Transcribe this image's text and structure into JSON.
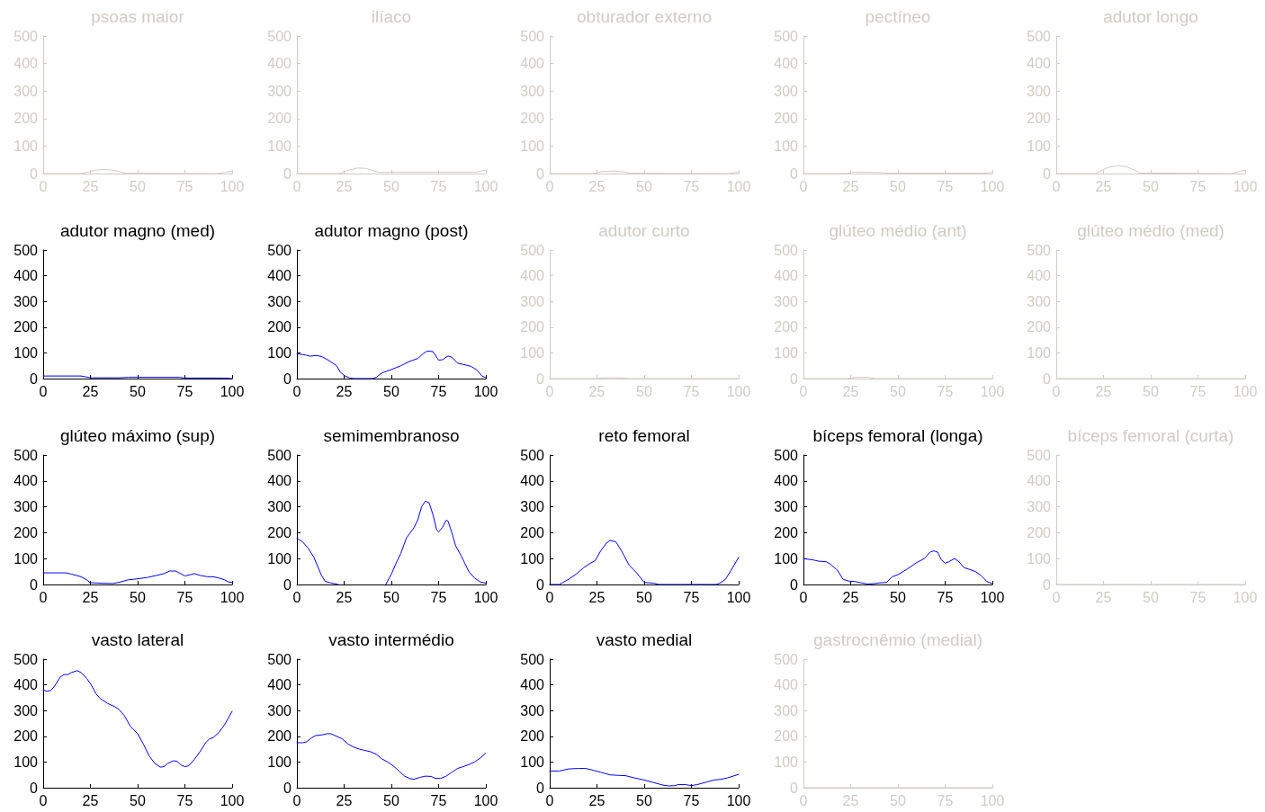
{
  "chart_data": [
    {
      "type": "line",
      "title": "psoas maior",
      "x": [
        0,
        20,
        24,
        28,
        32,
        36,
        40,
        44,
        92,
        96,
        100
      ],
      "series": [
        {
          "color": "#d0cbc4",
          "values": [
            0,
            0,
            6,
            13,
            15,
            13,
            7,
            1,
            0,
            4,
            10
          ]
        }
      ],
      "xlim": [
        0,
        100
      ],
      "xticks": [
        0,
        25,
        50,
        75,
        100
      ],
      "ylim": [
        0,
        500
      ],
      "yticks": [
        0,
        100,
        200,
        300,
        400,
        500
      ]
    },
    {
      "type": "line",
      "title": "ilíaco",
      "x": [
        0,
        23,
        27,
        32,
        36,
        40,
        43,
        95,
        100
      ],
      "series": [
        {
          "color": "#d0cbc4",
          "values": [
            0,
            0,
            12,
            20,
            19,
            12,
            5,
            5,
            13
          ]
        }
      ],
      "xlim": [
        0,
        100
      ],
      "xticks": [
        0,
        25,
        50,
        75,
        100
      ],
      "ylim": [
        0,
        500
      ],
      "yticks": [
        0,
        100,
        200,
        300,
        400,
        500
      ]
    },
    {
      "type": "line",
      "title": "obturador externo",
      "x": [
        0,
        23,
        28,
        35,
        40,
        43,
        95,
        100
      ],
      "series": [
        {
          "color": "#d0cbc4",
          "values": [
            0,
            0,
            8,
            9,
            5,
            1,
            0,
            6
          ]
        }
      ],
      "xlim": [
        0,
        100
      ],
      "xticks": [
        0,
        25,
        50,
        75,
        100
      ],
      "ylim": [
        0,
        500
      ],
      "yticks": [
        0,
        100,
        200,
        300,
        400,
        500
      ]
    },
    {
      "type": "line",
      "title": "pectíneo",
      "x": [
        0,
        23,
        26,
        40,
        45,
        95,
        100
      ],
      "series": [
        {
          "color": "#d0cbc4",
          "values": [
            0,
            0,
            5,
            4,
            1,
            1,
            4
          ]
        }
      ],
      "xlim": [
        0,
        100
      ],
      "xticks": [
        0,
        25,
        50,
        75,
        100
      ],
      "ylim": [
        0,
        500
      ],
      "yticks": [
        0,
        100,
        200,
        300,
        400,
        500
      ]
    },
    {
      "type": "line",
      "title": "adutor longo",
      "x": [
        0,
        21,
        25,
        29,
        33,
        37,
        41,
        44,
        93,
        97,
        100
      ],
      "series": [
        {
          "color": "#d0cbc4",
          "values": [
            0,
            0,
            15,
            25,
            28,
            25,
            14,
            2,
            0,
            8,
            12
          ]
        }
      ],
      "xlim": [
        0,
        100
      ],
      "xticks": [
        0,
        25,
        50,
        75,
        100
      ],
      "ylim": [
        0,
        500
      ],
      "yticks": [
        0,
        100,
        200,
        300,
        400,
        500
      ]
    },
    {
      "type": "line",
      "title": "adutor magno (med)",
      "x": [
        0,
        20,
        25,
        40,
        45,
        72,
        75,
        95,
        100
      ],
      "series": [
        {
          "color": "#0000ff",
          "values": [
            10,
            10,
            3,
            3,
            5,
            5,
            2,
            2,
            0
          ]
        }
      ],
      "xlim": [
        0,
        100
      ],
      "xticks": [
        0,
        25,
        50,
        75,
        100
      ],
      "ylim": [
        0,
        500
      ],
      "yticks": [
        0,
        100,
        200,
        300,
        400,
        500
      ]
    },
    {
      "type": "line",
      "title": "adutor magno (post)",
      "x": [
        0,
        5,
        7,
        10,
        13,
        17,
        21,
        23,
        25,
        28,
        30,
        40,
        42,
        45,
        50,
        55,
        60,
        64,
        67,
        69,
        72,
        75,
        77,
        80,
        82,
        85,
        88,
        92,
        95,
        98,
        100
      ],
      "series": [
        {
          "color": "#0000ff",
          "values": [
            97,
            91,
            87,
            90,
            86,
            70,
            50,
            25,
            12,
            2,
            0,
            0,
            5,
            22,
            35,
            50,
            68,
            78,
            98,
            107,
            105,
            72,
            73,
            88,
            83,
            60,
            55,
            48,
            35,
            10,
            3
          ]
        }
      ],
      "xlim": [
        0,
        100
      ],
      "xticks": [
        0,
        25,
        50,
        75,
        100
      ],
      "ylim": [
        0,
        500
      ],
      "yticks": [
        0,
        100,
        200,
        300,
        400,
        500
      ]
    },
    {
      "type": "line",
      "title": "adutor curto",
      "x": [
        0,
        24,
        30,
        36,
        42,
        100
      ],
      "series": [
        {
          "color": "#d0cbc4",
          "values": [
            0,
            0,
            3,
            3,
            0,
            0
          ]
        }
      ],
      "xlim": [
        0,
        100
      ],
      "xticks": [
        0,
        25,
        50,
        75,
        100
      ],
      "ylim": [
        0,
        500
      ],
      "yticks": [
        0,
        100,
        200,
        300,
        400,
        500
      ]
    },
    {
      "type": "line",
      "title": "glúteo médio (ant)",
      "x": [
        0,
        23,
        28,
        34,
        38,
        100
      ],
      "series": [
        {
          "color": "#d0cbc4",
          "values": [
            0,
            0,
            5,
            5,
            0,
            0
          ]
        }
      ],
      "xlim": [
        0,
        100
      ],
      "xticks": [
        0,
        25,
        50,
        75,
        100
      ],
      "ylim": [
        0,
        500
      ],
      "yticks": [
        0,
        100,
        200,
        300,
        400,
        500
      ]
    },
    {
      "type": "line",
      "title": "glúteo médio (med)",
      "x": [
        0,
        100
      ],
      "series": [
        {
          "color": "#d0cbc4",
          "values": [
            0,
            0
          ]
        }
      ],
      "xlim": [
        0,
        100
      ],
      "xticks": [
        0,
        25,
        50,
        75,
        100
      ],
      "ylim": [
        0,
        500
      ],
      "yticks": [
        0,
        100,
        200,
        300,
        400,
        500
      ]
    },
    {
      "type": "line",
      "title": "glúteo máximo (sup)",
      "x": [
        0,
        12,
        15,
        20,
        23,
        25,
        30,
        37,
        40,
        45,
        50,
        55,
        60,
        64,
        67,
        70,
        72,
        75,
        78,
        80,
        83,
        87,
        90,
        93,
        96,
        98,
        100
      ],
      "series": [
        {
          "color": "#0000ff",
          "values": [
            45,
            45,
            40,
            30,
            18,
            7,
            5,
            4,
            8,
            18,
            22,
            27,
            35,
            42,
            52,
            52,
            45,
            33,
            38,
            42,
            35,
            30,
            30,
            25,
            18,
            10,
            8
          ]
        }
      ],
      "xlim": [
        0,
        100
      ],
      "xticks": [
        0,
        25,
        50,
        75,
        100
      ],
      "ylim": [
        0,
        500
      ],
      "yticks": [
        0,
        100,
        200,
        300,
        400,
        500
      ]
    },
    {
      "type": "line",
      "title": "semimembranoso",
      "x": [
        0,
        3,
        6,
        9,
        11,
        13,
        15,
        18,
        20,
        22,
        35,
        47,
        50,
        53,
        55,
        58,
        62,
        64,
        66,
        68,
        70,
        72,
        74,
        75,
        77,
        79,
        80,
        82,
        84,
        87,
        89,
        91,
        94,
        97,
        100
      ],
      "series": [
        {
          "color": "#0000ff",
          "values": [
            178,
            165,
            140,
            105,
            70,
            35,
            12,
            6,
            3,
            0,
            null,
            0,
            40,
            90,
            120,
            180,
            220,
            250,
            300,
            322,
            315,
            270,
            210,
            203,
            220,
            248,
            245,
            200,
            150,
            110,
            80,
            50,
            25,
            10,
            5
          ]
        }
      ],
      "xlim": [
        0,
        100
      ],
      "xticks": [
        0,
        25,
        50,
        75,
        100
      ],
      "ylim": [
        0,
        500
      ],
      "yticks": [
        0,
        100,
        200,
        300,
        400,
        500
      ]
    },
    {
      "type": "line",
      "title": "reto femoral",
      "x": [
        0,
        5,
        7,
        10,
        14,
        18,
        21,
        24,
        27,
        30,
        32,
        35,
        38,
        42,
        46,
        50,
        55,
        58,
        88,
        90,
        93,
        96,
        100
      ],
      "series": [
        {
          "color": "#0000ff",
          "values": [
            0,
            0,
            8,
            20,
            40,
            65,
            80,
            92,
            130,
            160,
            170,
            165,
            130,
            75,
            45,
            8,
            5,
            0,
            0,
            5,
            20,
            55,
            105
          ]
        }
      ],
      "xlim": [
        0,
        100
      ],
      "xticks": [
        0,
        25,
        50,
        75,
        100
      ],
      "ylim": [
        0,
        500
      ],
      "yticks": [
        0,
        100,
        200,
        300,
        400,
        500
      ]
    },
    {
      "type": "line",
      "title": "bíceps femoral (longa)",
      "x": [
        0,
        5,
        8,
        12,
        14,
        18,
        21,
        24,
        27,
        30,
        34,
        37,
        40,
        44,
        47,
        50,
        55,
        60,
        64,
        67,
        69,
        71,
        73,
        75,
        77,
        80,
        82,
        85,
        88,
        91,
        94,
        97,
        100
      ],
      "series": [
        {
          "color": "#0000ff",
          "values": [
            100,
            95,
            90,
            88,
            80,
            55,
            20,
            13,
            12,
            7,
            2,
            3,
            6,
            8,
            30,
            38,
            60,
            85,
            100,
            125,
            130,
            125,
            95,
            82,
            88,
            100,
            90,
            65,
            58,
            50,
            35,
            12,
            3
          ]
        }
      ],
      "xlim": [
        0,
        100
      ],
      "xticks": [
        0,
        25,
        50,
        75,
        100
      ],
      "ylim": [
        0,
        500
      ],
      "yticks": [
        0,
        100,
        200,
        300,
        400,
        500
      ]
    },
    {
      "type": "line",
      "title": "bíceps femoral (curta)",
      "x": [
        0,
        100
      ],
      "series": [
        {
          "color": "#d0cbc4",
          "values": [
            0,
            0
          ]
        }
      ],
      "xlim": [
        0,
        100
      ],
      "xticks": [
        0,
        25,
        50,
        75,
        100
      ],
      "ylim": [
        0,
        500
      ],
      "yticks": [
        0,
        100,
        200,
        300,
        400,
        500
      ]
    },
    {
      "type": "line",
      "title": "vasto lateral",
      "x": [
        0,
        2,
        4,
        6,
        9,
        11,
        13,
        15,
        18,
        20,
        23,
        25,
        28,
        30,
        34,
        38,
        40,
        43,
        46,
        50,
        53,
        56,
        59,
        62,
        64,
        66,
        69,
        71,
        73,
        75,
        77,
        80,
        83,
        86,
        88,
        90,
        93,
        96,
        100
      ],
      "series": [
        {
          "color": "#0000ff",
          "values": [
            380,
            375,
            378,
            395,
            430,
            440,
            440,
            448,
            455,
            448,
            425,
            405,
            365,
            348,
            328,
            315,
            305,
            280,
            240,
            210,
            170,
            125,
            95,
            80,
            82,
            95,
            105,
            102,
            88,
            82,
            85,
            110,
            140,
            175,
            190,
            195,
            215,
            245,
            297
          ]
        }
      ],
      "xlim": [
        0,
        100
      ],
      "xticks": [
        0,
        25,
        50,
        75,
        100
      ],
      "ylim": [
        0,
        500
      ],
      "yticks": [
        0,
        100,
        200,
        300,
        400,
        500
      ]
    },
    {
      "type": "line",
      "title": "vasto intermédio",
      "x": [
        0,
        3,
        5,
        8,
        10,
        13,
        16,
        18,
        21,
        24,
        27,
        30,
        33,
        36,
        39,
        42,
        45,
        48,
        51,
        54,
        57,
        60,
        62,
        65,
        68,
        71,
        73,
        76,
        79,
        82,
        85,
        88,
        91,
        94,
        97,
        100
      ],
      "series": [
        {
          "color": "#0000ff",
          "values": [
            175,
            175,
            178,
            195,
            203,
            205,
            210,
            210,
            200,
            190,
            170,
            158,
            150,
            145,
            140,
            130,
            112,
            100,
            85,
            65,
            45,
            35,
            33,
            40,
            45,
            44,
            37,
            36,
            45,
            60,
            75,
            82,
            90,
            100,
            115,
            135
          ]
        }
      ],
      "xlim": [
        0,
        100
      ],
      "xticks": [
        0,
        25,
        50,
        75,
        100
      ],
      "ylim": [
        0,
        500
      ],
      "yticks": [
        0,
        100,
        200,
        300,
        400,
        500
      ]
    },
    {
      "type": "line",
      "title": "vasto medial",
      "x": [
        0,
        5,
        10,
        15,
        19,
        23,
        27,
        32,
        36,
        40,
        45,
        50,
        55,
        60,
        63,
        66,
        68,
        72,
        75,
        78,
        83,
        87,
        90,
        94,
        100
      ],
      "series": [
        {
          "color": "#0000ff",
          "values": [
            65,
            65,
            73,
            75,
            75,
            68,
            60,
            50,
            48,
            47,
            38,
            30,
            20,
            10,
            7,
            8,
            12,
            12,
            8,
            12,
            22,
            30,
            32,
            38,
            52
          ]
        }
      ],
      "xlim": [
        0,
        100
      ],
      "xticks": [
        0,
        25,
        50,
        75,
        100
      ],
      "ylim": [
        0,
        500
      ],
      "yticks": [
        0,
        100,
        200,
        300,
        400,
        500
      ]
    },
    {
      "type": "line",
      "title": "gastrocnêmio (medial)",
      "x": [
        0,
        100
      ],
      "series": [
        {
          "color": "#d0cbc4",
          "values": [
            0,
            0
          ]
        }
      ],
      "xlim": [
        0,
        100
      ],
      "xticks": [
        0,
        25,
        50,
        75,
        100
      ],
      "ylim": [
        0,
        500
      ],
      "yticks": [
        0,
        100,
        200,
        300,
        400,
        500
      ]
    }
  ]
}
